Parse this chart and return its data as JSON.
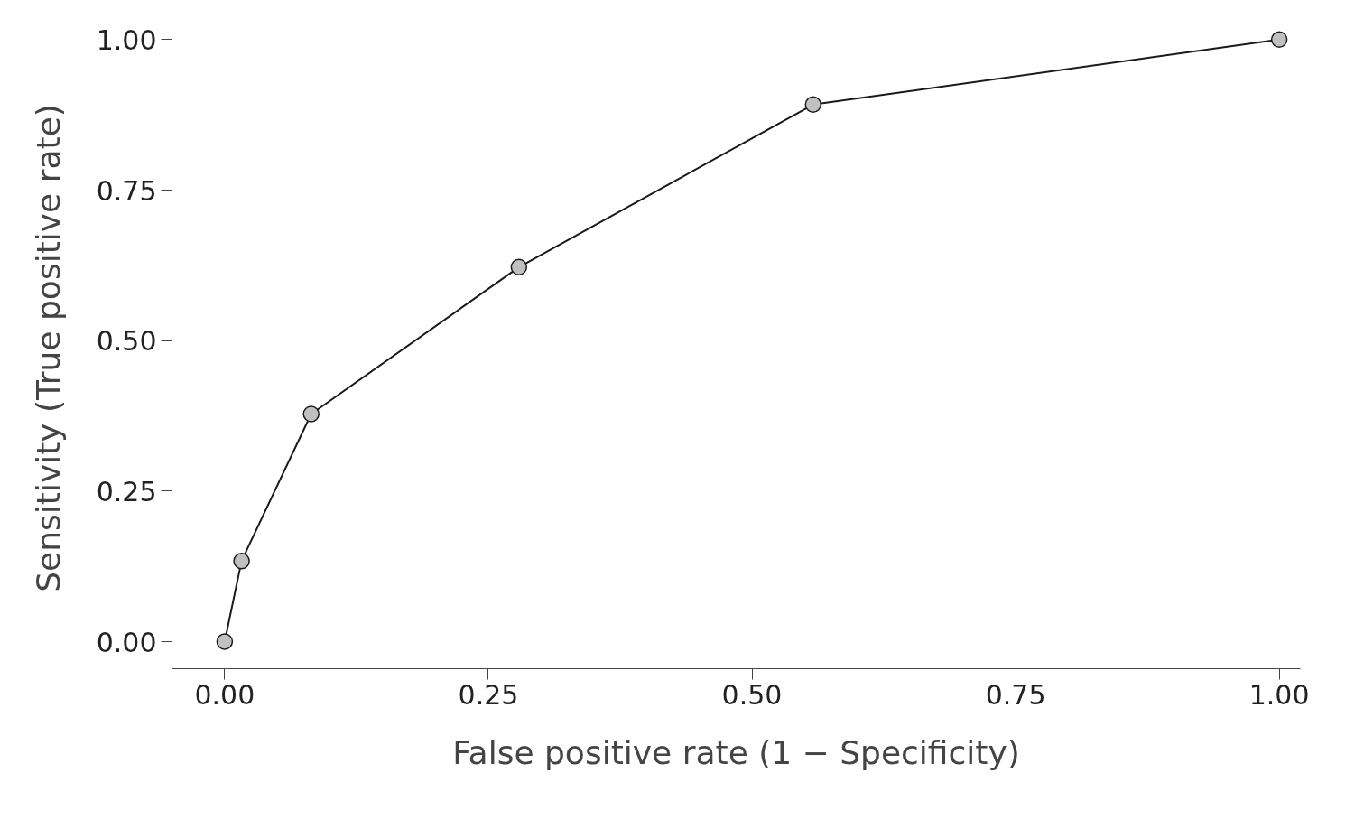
{
  "chart_data": {
    "type": "line",
    "xlabel": "False positive rate (1 − Specificity)",
    "ylabel": "Sensitivity (True positive rate)",
    "x": [
      0,
      0.016,
      0.082,
      0.279,
      0.558,
      1
    ],
    "series": [
      {
        "color": "#1a1a1a",
        "values": [
          0,
          0.134,
          0.378,
          0.622,
          0.892,
          1
        ]
      }
    ],
    "xlim": [
      -0.05,
      1.02
    ],
    "ylim": [
      -0.045,
      1.02
    ],
    "xticks": [
      {
        "value": 0,
        "label": "0.00"
      },
      {
        "value": 0.25,
        "label": "0.25"
      },
      {
        "value": 0.5,
        "label": "0.50"
      },
      {
        "value": 0.75,
        "label": "0.75"
      },
      {
        "value": 1,
        "label": "1.00"
      }
    ],
    "yticks": [
      {
        "value": 0,
        "label": "0.00"
      },
      {
        "value": 0.25,
        "label": "0.25"
      },
      {
        "value": 0.5,
        "label": "0.50"
      },
      {
        "value": 0.75,
        "label": "0.75"
      },
      {
        "value": 1,
        "label": "1.00"
      }
    ],
    "grid": false,
    "marker": "circle",
    "line_style": "solid"
  }
}
